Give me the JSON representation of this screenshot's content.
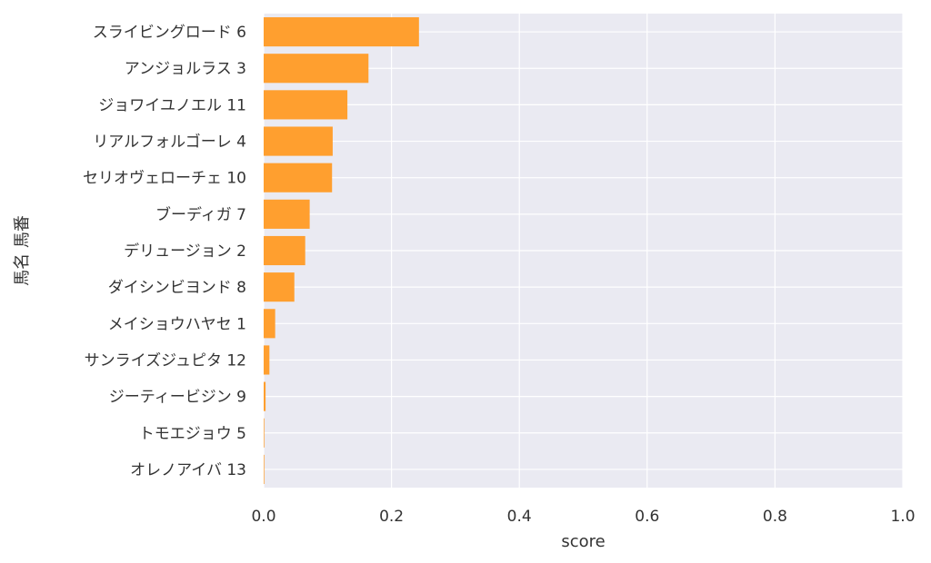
{
  "chart_data": {
    "type": "bar",
    "orientation": "horizontal",
    "categories": [
      "スライビングロード 6",
      "アンジョルラス 3",
      "ジョワイユノエル 11",
      "リアルフォルゴーレ 4",
      "セリオヴェローチェ 10",
      "ブーディガ 7",
      "デリュージョン 2",
      "ダイシンビヨンド 8",
      "メイショウハヤセ 1",
      "サンライズジュピタ 12",
      "ジーティービジン 9",
      "トモエジョウ 5",
      "オレノアイバ 13"
    ],
    "values": [
      0.243,
      0.164,
      0.131,
      0.108,
      0.107,
      0.072,
      0.065,
      0.048,
      0.018,
      0.009,
      0.003,
      0.001,
      0.001
    ],
    "xlabel": "score",
    "ylabel": "馬名 馬番",
    "xlim": [
      0,
      1.0
    ],
    "xticks": [
      "0.0",
      "0.2",
      "0.4",
      "0.6",
      "0.8",
      "1.0"
    ],
    "grid": true,
    "colors": {
      "bar": "#ff9f2f",
      "background": "#eaeaf2",
      "grid": "#ffffff"
    }
  }
}
